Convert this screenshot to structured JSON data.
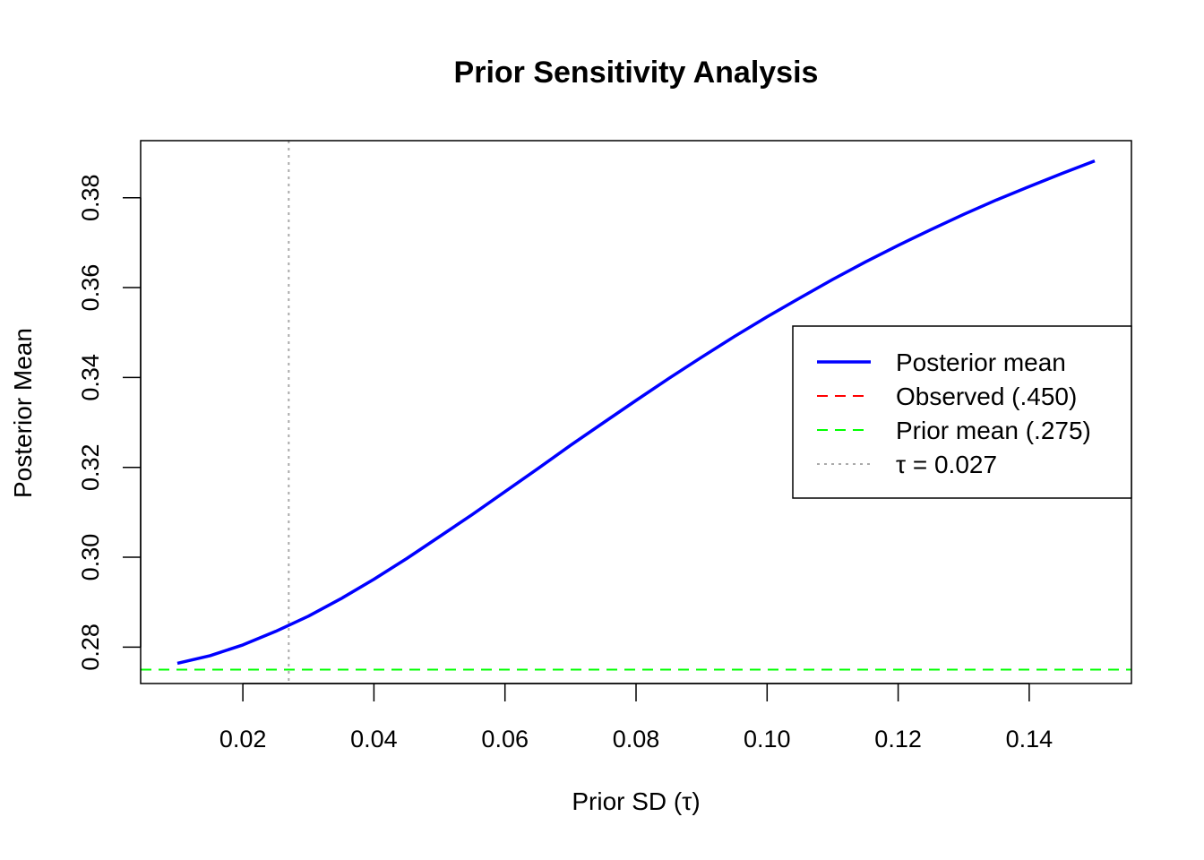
{
  "chart_data": {
    "type": "line",
    "title": "Prior Sensitivity Analysis",
    "xlabel": "Prior SD (τ)",
    "ylabel": "Posterior Mean",
    "xlim": [
      0.0044,
      0.1556
    ],
    "ylim": [
      0.2719,
      0.3927
    ],
    "xticks": [
      0.02,
      0.04,
      0.06,
      0.08,
      0.1,
      0.12,
      0.14
    ],
    "xtick_labels": [
      "0.02",
      "0.04",
      "0.06",
      "0.08",
      "0.10",
      "0.12",
      "0.14"
    ],
    "yticks": [
      0.28,
      0.3,
      0.32,
      0.34,
      0.36,
      0.38
    ],
    "ytick_labels": [
      "0.28",
      "0.30",
      "0.32",
      "0.34",
      "0.36",
      "0.38"
    ],
    "grid": false,
    "series": [
      {
        "name": "Posterior mean",
        "color": "#0000ff",
        "style": "solid",
        "x": [
          0.01,
          0.015,
          0.02,
          0.025,
          0.03,
          0.035,
          0.04,
          0.045,
          0.05,
          0.055,
          0.06,
          0.065,
          0.07,
          0.075,
          0.08,
          0.085,
          0.09,
          0.095,
          0.1,
          0.105,
          0.11,
          0.115,
          0.12,
          0.125,
          0.13,
          0.135,
          0.14,
          0.145,
          0.15
        ],
        "y": [
          0.2764,
          0.2781,
          0.2805,
          0.2835,
          0.2869,
          0.2908,
          0.2951,
          0.2997,
          0.3046,
          0.3095,
          0.3146,
          0.3197,
          0.3249,
          0.3299,
          0.3349,
          0.3398,
          0.3445,
          0.3491,
          0.3535,
          0.3577,
          0.3618,
          0.3657,
          0.3694,
          0.3729,
          0.3763,
          0.3795,
          0.3825,
          0.3854,
          0.3882
        ]
      }
    ],
    "hlines": [
      {
        "name": "Observed (.450)",
        "y": 0.45,
        "color": "#ff0000",
        "style": "dashed"
      },
      {
        "name": "Prior mean (.275)",
        "y": 0.275,
        "color": "#00ff00",
        "style": "dashed"
      }
    ],
    "vlines": [
      {
        "name": "τ = 0.027",
        "x": 0.027,
        "color": "#aaaaaa",
        "style": "dotted"
      }
    ],
    "legend": {
      "placement": "right",
      "entries": [
        {
          "label": "Posterior mean",
          "color": "#0000ff",
          "style": "solid"
        },
        {
          "label": "Observed (.450)",
          "color": "#ff0000",
          "style": "dashed"
        },
        {
          "label": "Prior mean (.275)",
          "color": "#00ff00",
          "style": "dashed"
        },
        {
          "label": "τ = 0.027",
          "color": "#aaaaaa",
          "style": "dotted"
        }
      ]
    }
  }
}
